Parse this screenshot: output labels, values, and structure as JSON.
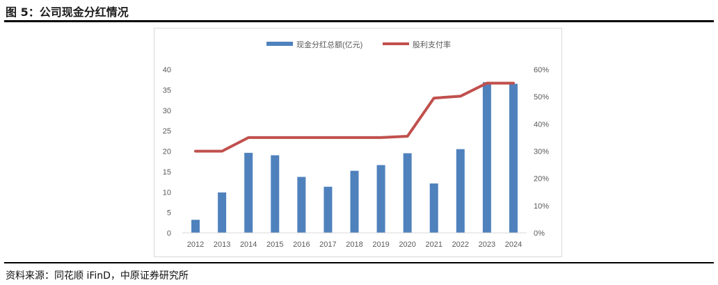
{
  "figure": {
    "title": "图 5：公司现金分红情况",
    "source": "资料来源：同花顺 iFinD，中原证券研究所"
  },
  "chart_data": {
    "type": "bar",
    "title": "",
    "xlabel": "",
    "ylabel": "",
    "categories": [
      "2012",
      "2013",
      "2014",
      "2015",
      "2016",
      "2017",
      "2018",
      "2019",
      "2020",
      "2021",
      "2022",
      "2023",
      "2024"
    ],
    "series": [
      {
        "name": "现金分红总额(亿元)",
        "type": "bar",
        "axis": "left",
        "color": "#4f81bd",
        "values": [
          3.2,
          9.9,
          19.6,
          19.0,
          13.7,
          11.3,
          15.2,
          16.6,
          19.5,
          12.1,
          20.5,
          36.9,
          36.5
        ]
      },
      {
        "name": "股利支付率",
        "type": "line",
        "axis": "right",
        "color": "#c0504d",
        "values": [
          0.3,
          0.3,
          0.35,
          0.35,
          0.35,
          0.35,
          0.35,
          0.35,
          0.355,
          0.495,
          0.502,
          0.55,
          0.55
        ]
      }
    ],
    "ylim": [
      0,
      40
    ],
    "yticks": [
      "0",
      "5",
      "10",
      "15",
      "20",
      "25",
      "30",
      "35",
      "40"
    ],
    "y2lim": [
      0,
      0.6
    ],
    "y2ticks": [
      "0%",
      "10%",
      "20%",
      "30%",
      "40%",
      "50%",
      "60%"
    ],
    "grid": false,
    "legend_position": "top-center"
  }
}
